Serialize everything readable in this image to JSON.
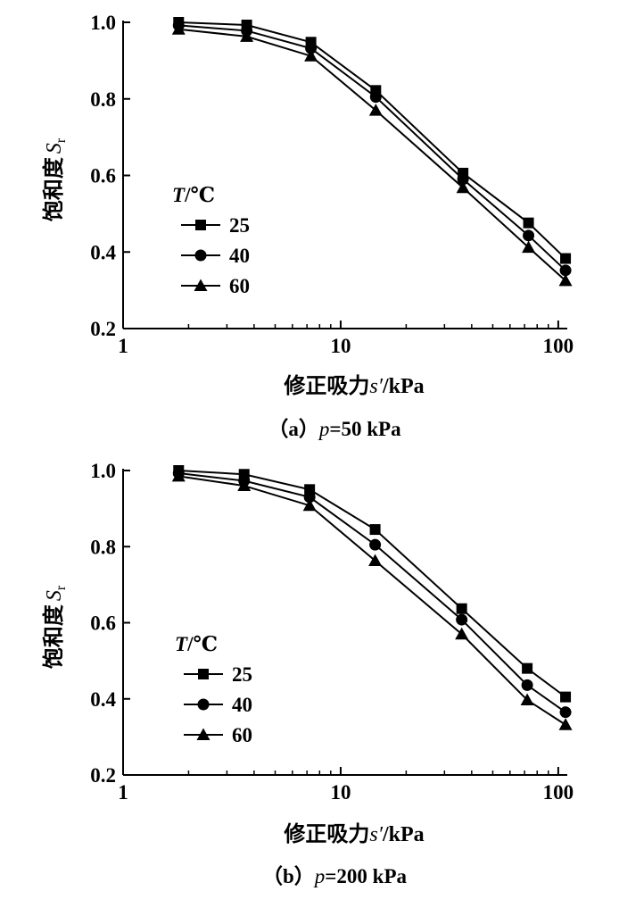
{
  "chart_data": [
    {
      "type": "line",
      "panel": "a",
      "caption_prefix": "（a）",
      "caption_var": "p",
      "caption_value": "=50 kPa",
      "xlabel_text": "修正吸力",
      "xlabel_var": "s′",
      "xlabel_unit": "/kPa",
      "ylabel_text": "饱和度",
      "ylabel_var": "S",
      "ylabel_sub": "r",
      "xscale": "log",
      "xlim": [
        1,
        110
      ],
      "ylim": [
        0.2,
        1.0
      ],
      "xticks": [
        1,
        10,
        100
      ],
      "xtick_labels": [
        "1",
        "10",
        "100"
      ],
      "yticks": [
        0.2,
        0.4,
        0.6,
        0.8,
        1.0
      ],
      "ytick_labels": [
        "0.2",
        "0.4",
        "0.6",
        "0.8",
        "1.0"
      ],
      "legend_title_var": "T",
      "legend_title_unit": "/℃",
      "legend_position": "middle-left",
      "x": [
        1.8,
        3.7,
        7.3,
        14.5,
        36.5,
        73,
        108
      ],
      "series": [
        {
          "name": "25",
          "marker": "square",
          "values": [
            1.0,
            0.993,
            0.948,
            0.822,
            0.606,
            0.476,
            0.383
          ]
        },
        {
          "name": "40",
          "marker": "circle",
          "values": [
            0.992,
            0.978,
            0.932,
            0.805,
            0.59,
            0.443,
            0.352
          ]
        },
        {
          "name": "60",
          "marker": "triangle",
          "values": [
            0.982,
            0.963,
            0.912,
            0.77,
            0.568,
            0.412,
            0.325
          ]
        }
      ]
    },
    {
      "type": "line",
      "panel": "b",
      "caption_prefix": "（b）",
      "caption_var": "p",
      "caption_value": "=200 kPa",
      "xlabel_text": "修正吸力",
      "xlabel_var": "s′",
      "xlabel_unit": "/kPa",
      "ylabel_text": "饱和度",
      "ylabel_var": "S",
      "ylabel_sub": "r",
      "xscale": "log",
      "xlim": [
        1,
        110
      ],
      "ylim": [
        0.2,
        1.0
      ],
      "xticks": [
        1,
        10,
        100
      ],
      "xtick_labels": [
        "1",
        "10",
        "100"
      ],
      "yticks": [
        0.2,
        0.4,
        0.6,
        0.8,
        1.0
      ],
      "ytick_labels": [
        "0.2",
        "0.4",
        "0.6",
        "0.8",
        "1.0"
      ],
      "legend_title_var": "T",
      "legend_title_unit": "/℃",
      "legend_position": "middle-left",
      "x": [
        1.8,
        3.6,
        7.2,
        14.4,
        36,
        72,
        108
      ],
      "series": [
        {
          "name": "25",
          "marker": "square",
          "values": [
            1.0,
            0.99,
            0.95,
            0.845,
            0.637,
            0.48,
            0.405
          ]
        },
        {
          "name": "40",
          "marker": "circle",
          "values": [
            0.993,
            0.973,
            0.93,
            0.805,
            0.608,
            0.436,
            0.365
          ]
        },
        {
          "name": "60",
          "marker": "triangle",
          "values": [
            0.985,
            0.96,
            0.908,
            0.763,
            0.57,
            0.397,
            0.332
          ]
        }
      ]
    }
  ]
}
